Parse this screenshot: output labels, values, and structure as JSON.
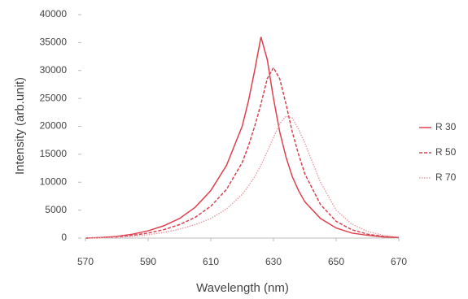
{
  "chart_data": {
    "type": "line",
    "xlabel": "Wavelength (nm)",
    "ylabel": "Intensity (arb.unit)",
    "x": [
      570,
      575,
      580,
      585,
      590,
      595,
      600,
      605,
      610,
      615,
      620,
      622,
      624,
      626,
      628,
      630,
      632,
      634,
      636,
      638,
      640,
      645,
      650,
      655,
      660,
      665,
      670
    ],
    "series": [
      {
        "name": "R 30",
        "color": "#e0404c",
        "style": "solid",
        "values": [
          0,
          100,
          300,
          700,
          1300,
          2200,
          3500,
          5500,
          8500,
          13000,
          20000,
          24500,
          30000,
          36000,
          32000,
          25000,
          19000,
          14500,
          11000,
          8500,
          6500,
          3500,
          1800,
          900,
          500,
          200,
          100
        ]
      },
      {
        "name": "R 50",
        "color": "#d9424f",
        "style": "dashed",
        "values": [
          0,
          100,
          200,
          500,
          900,
          1500,
          2400,
          3700,
          5700,
          8700,
          13500,
          16500,
          20000,
          24000,
          28500,
          30500,
          28500,
          24000,
          19000,
          15000,
          11500,
          6000,
          3000,
          1500,
          700,
          300,
          100
        ]
      },
      {
        "name": "R 70",
        "color": "#e8a0a8",
        "style": "dotted",
        "values": [
          0,
          50,
          150,
          300,
          600,
          1000,
          1600,
          2400,
          3500,
          5200,
          7800,
          9300,
          11000,
          13000,
          15500,
          18000,
          20500,
          21800,
          21500,
          19500,
          17000,
          10000,
          5000,
          2500,
          1200,
          500,
          200
        ]
      }
    ],
    "xlim": [
      570,
      670
    ],
    "xticks": [
      570,
      590,
      610,
      630,
      650,
      670
    ],
    "ylim": [
      0,
      40000
    ],
    "yticks": [
      0,
      5000,
      10000,
      15000,
      20000,
      25000,
      30000,
      35000,
      40000
    ],
    "legend": "right"
  }
}
